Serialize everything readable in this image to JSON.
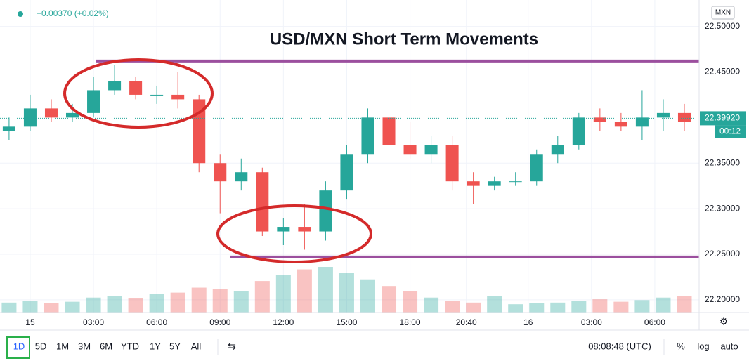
{
  "chart_data": {
    "type": "candlestick",
    "title": "USD/MXN Short Term Movements",
    "change_label": "+0.00370 (+0.02%)",
    "currency": "MXN",
    "x": [
      -1,
      0,
      1,
      2,
      3,
      4,
      5,
      6,
      7,
      8,
      9,
      10,
      11,
      12,
      13,
      14,
      15,
      16,
      17,
      18,
      19,
      20,
      21,
      22,
      23,
      24,
      25,
      26,
      27,
      28,
      29,
      30,
      31
    ],
    "open": [
      22.385,
      22.39,
      22.41,
      22.4,
      22.405,
      22.43,
      22.44,
      22.425,
      22.425,
      22.42,
      22.35,
      22.33,
      22.34,
      22.275,
      22.28,
      22.275,
      22.32,
      22.36,
      22.4,
      22.37,
      22.36,
      22.37,
      22.33,
      22.325,
      22.33,
      22.33,
      22.36,
      22.37,
      22.4,
      22.395,
      22.39,
      22.4,
      22.405
    ],
    "high": [
      22.4,
      22.425,
      22.42,
      22.415,
      22.445,
      22.458,
      22.445,
      22.435,
      22.45,
      22.425,
      22.36,
      22.355,
      22.345,
      22.29,
      22.305,
      22.33,
      22.37,
      22.41,
      22.41,
      22.395,
      22.38,
      22.38,
      22.34,
      22.335,
      22.34,
      22.365,
      22.38,
      22.405,
      22.41,
      22.405,
      22.43,
      22.42,
      22.415
    ],
    "low": [
      22.375,
      22.385,
      22.395,
      22.395,
      22.4,
      22.425,
      22.42,
      22.415,
      22.41,
      22.34,
      22.295,
      22.32,
      22.27,
      22.26,
      22.255,
      22.265,
      22.31,
      22.35,
      22.365,
      22.355,
      22.35,
      22.32,
      22.305,
      22.32,
      22.325,
      22.325,
      22.35,
      22.365,
      22.385,
      22.385,
      22.375,
      22.385,
      22.385
    ],
    "close": [
      22.39,
      22.41,
      22.4,
      22.405,
      22.43,
      22.44,
      22.425,
      22.425,
      22.42,
      22.35,
      22.33,
      22.34,
      22.275,
      22.28,
      22.275,
      22.32,
      22.36,
      22.4,
      22.37,
      22.36,
      22.37,
      22.33,
      22.325,
      22.33,
      22.33,
      22.36,
      22.37,
      22.4,
      22.395,
      22.39,
      22.4,
      22.405,
      22.395
    ],
    "volume": [
      12,
      14,
      11,
      13,
      18,
      20,
      17,
      22,
      24,
      30,
      28,
      26,
      38,
      45,
      52,
      55,
      48,
      40,
      32,
      26,
      18,
      14,
      12,
      20,
      10,
      11,
      12,
      14,
      16,
      13,
      15,
      18,
      20
    ],
    "up_color": "#26a69a",
    "down_color": "#ef5350",
    "xlim": [
      -1.43,
      31.7
    ],
    "xticks": [
      {
        "value": 0,
        "label": "15"
      },
      {
        "value": 3,
        "label": "03:00"
      },
      {
        "value": 6,
        "label": "06:00"
      },
      {
        "value": 9,
        "label": "09:00"
      },
      {
        "value": 12,
        "label": "12:00"
      },
      {
        "value": 15,
        "label": "15:00"
      },
      {
        "value": 18,
        "label": "18:00"
      },
      {
        "value": 20.67,
        "label": "20:40"
      },
      {
        "value": 23.6,
        "label": "16"
      },
      {
        "value": 26.6,
        "label": "03:00"
      },
      {
        "value": 29.6,
        "label": "06:00"
      }
    ],
    "ylim": [
      22.186,
      22.529
    ],
    "yticks": [
      {
        "value": 22.2,
        "label": "22.20000"
      },
      {
        "value": 22.25,
        "label": "22.25000"
      },
      {
        "value": 22.3,
        "label": "22.30000"
      },
      {
        "value": 22.35,
        "label": "22.35000"
      },
      {
        "value": 22.45,
        "label": "22.45000"
      },
      {
        "value": 22.5,
        "label": "22.50000"
      }
    ],
    "last_price": {
      "value": 22.3992,
      "label": "22.39920"
    },
    "countdown": "00:12",
    "levels": [
      {
        "value": 22.462,
        "from": 3.13,
        "color": "#9b4f9e"
      },
      {
        "value": 22.247,
        "from": 9.47,
        "color": "#9b4f9e"
      }
    ],
    "grid": true,
    "toolbar": {
      "ranges": [
        "1D",
        "5D",
        "1M",
        "3M",
        "6M",
        "YTD",
        "1Y",
        "5Y",
        "All"
      ],
      "clock": "08:08:48 (UTC)",
      "options": [
        "%",
        "log",
        "auto"
      ]
    }
  }
}
